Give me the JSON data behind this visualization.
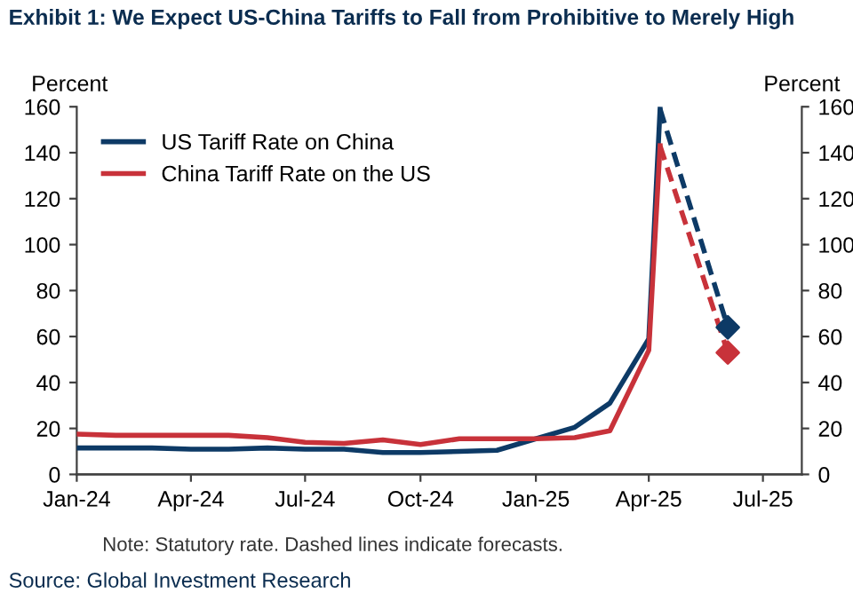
{
  "chart_data": {
    "type": "line",
    "title": "Exhibit 1: We Expect US-China Tariffs to Fall from Prohibitive to Merely High",
    "ylabel": "Percent",
    "y2label": "Percent",
    "series": [
      {
        "name": "US Tariff Rate on China",
        "color": "#0d3a66",
        "line_style": "solid",
        "x": [
          "2024-01",
          "2024-02",
          "2024-03",
          "2024-04",
          "2024-05",
          "2024-06",
          "2024-07",
          "2024-08",
          "2024-09",
          "2024-10",
          "2024-11",
          "2024-12",
          "2025-01",
          "2025-02",
          "2025-03",
          "2025-04",
          "2025-04-10"
        ],
        "values": [
          11.5,
          11.5,
          11.5,
          11,
          11,
          11.5,
          11,
          11,
          9.5,
          9.5,
          10,
          10.5,
          15.5,
          20.5,
          31,
          59,
          159
        ]
      },
      {
        "name": "China Tariff Rate on the US",
        "color": "#c8323a",
        "line_style": "solid",
        "x": [
          "2024-01",
          "2024-02",
          "2024-03",
          "2024-04",
          "2024-05",
          "2024-06",
          "2024-07",
          "2024-08",
          "2024-09",
          "2024-10",
          "2024-11",
          "2024-12",
          "2025-01",
          "2025-02",
          "2025-03",
          "2025-04",
          "2025-04-10"
        ],
        "values": [
          17.5,
          17,
          17,
          17,
          17,
          16,
          14,
          13.5,
          15,
          13,
          15.5,
          15.5,
          15.5,
          16,
          19,
          54,
          143
        ]
      },
      {
        "color": "#0d3a66",
        "line_style": "dashed",
        "x": [
          "2025-04-10",
          "2025-06-03"
        ],
        "values": [
          159,
          64
        ]
      },
      {
        "color": "#c8323a",
        "line_style": "dashed",
        "x": [
          "2025-04-10",
          "2025-06-03"
        ],
        "values": [
          143,
          53
        ]
      },
      {
        "type": "scatter",
        "marker": "diamond",
        "color": "#0d3a66",
        "x": [
          "2025-06-03"
        ],
        "values": [
          64
        ]
      },
      {
        "type": "scatter",
        "marker": "diamond",
        "color": "#c8323a",
        "x": [
          "2025-06-03"
        ],
        "values": [
          53
        ]
      }
    ],
    "xlim": [
      "2024-01-01",
      "2025-08-01"
    ],
    "xticks": [
      {
        "value": "2024-01-01",
        "label": "Jan-24"
      },
      {
        "value": "2024-04-01",
        "label": "Apr-24"
      },
      {
        "value": "2024-07-01",
        "label": "Jul-24"
      },
      {
        "value": "2024-10-01",
        "label": "Oct-24"
      },
      {
        "value": "2025-01-01",
        "label": "Jan-25"
      },
      {
        "value": "2025-04-01",
        "label": "Apr-25"
      },
      {
        "value": "2025-07-01",
        "label": "Jul-25"
      }
    ],
    "ylim": [
      0,
      160
    ],
    "yticks": [
      0,
      20,
      40,
      60,
      80,
      100,
      120,
      140,
      160
    ],
    "y2lim": [
      0,
      160
    ],
    "y2ticks": [
      0,
      20,
      40,
      60,
      80,
      100,
      120,
      140,
      160
    ],
    "legend": "top left",
    "grid": false,
    "annotations": [
      "Note: Statutory rate. Dashed lines indicate forecasts.",
      "Source: Global Investment Research"
    ]
  }
}
